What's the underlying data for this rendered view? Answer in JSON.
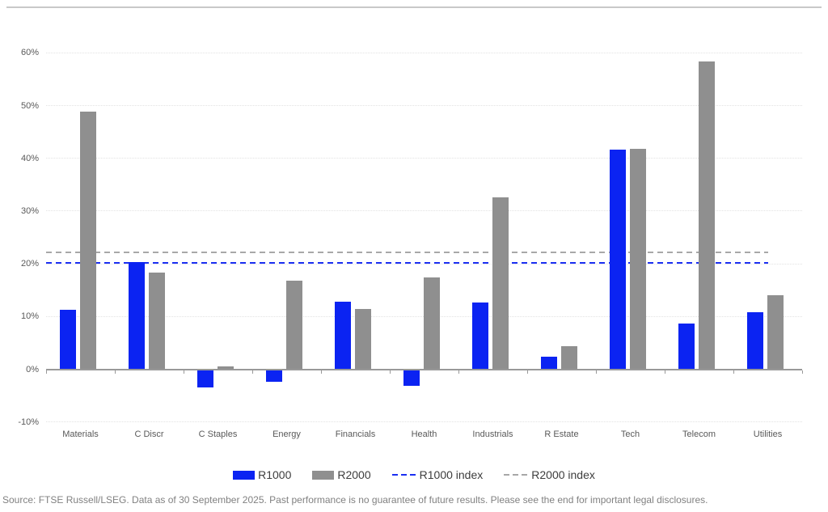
{
  "footer": {
    "text": "Source: FTSE Russell/LSEG. Data as of 30 September 2025. Past performance is no guarantee of future results. Please see the end for important legal disclosures."
  },
  "legend": {
    "items": [
      {
        "label": "R1000",
        "swatch": "solid",
        "color": "#0b23f2"
      },
      {
        "label": "R2000",
        "swatch": "solid",
        "color": "#8f8f8f"
      },
      {
        "label": "R1000 index",
        "swatch": "dashed",
        "color": "#1b2ff2"
      },
      {
        "label": "R2000 index",
        "swatch": "dashed",
        "color": "#a8a8a8"
      }
    ]
  },
  "chart_data": {
    "type": "bar",
    "title": "",
    "categories": [
      "Materials",
      "C Discr",
      "C Staples",
      "Energy",
      "Financials",
      "Health",
      "Industrials",
      "R Estate",
      "Tech",
      "Telecom",
      "Utilities"
    ],
    "series": [
      {
        "name": "R1000",
        "color": "#0b23f2",
        "values": [
          11.2,
          20.3,
          -3.2,
          -2.1,
          12.8,
          -2.9,
          12.7,
          2.4,
          41.6,
          8.7,
          10.8
        ]
      },
      {
        "name": "R2000",
        "color": "#8f8f8f",
        "values": [
          48.8,
          18.4,
          0.5,
          16.8,
          11.4,
          17.4,
          32.6,
          4.4,
          41.8,
          58.3,
          14.1
        ]
      }
    ],
    "reference_lines": [
      {
        "name": "R1000 index",
        "value": 20.1,
        "color": "#1b2ff2",
        "style": "dashed"
      },
      {
        "name": "R2000 index",
        "value": 22.1,
        "color": "#a8a8a8",
        "style": "dashed"
      }
    ],
    "y_axis": {
      "ticks": [
        {
          "label": "60%",
          "value": 60
        },
        {
          "label": "50%",
          "value": 50
        },
        {
          "label": "40%",
          "value": 40
        },
        {
          "label": "30%",
          "value": 30
        },
        {
          "label": "20%",
          "value": 20
        },
        {
          "label": "10%",
          "value": 10
        },
        {
          "label": "0%",
          "value": 0
        },
        {
          "label": "-10%",
          "value": -10
        }
      ],
      "range": [
        -10,
        62
      ]
    },
    "xlabel": "",
    "ylabel": "",
    "grid": "dotted-horizontal",
    "legend_position": "bottom",
    "axis_color": "#999999",
    "grid_color": "#e2e2e2",
    "label_color": "#595959"
  }
}
